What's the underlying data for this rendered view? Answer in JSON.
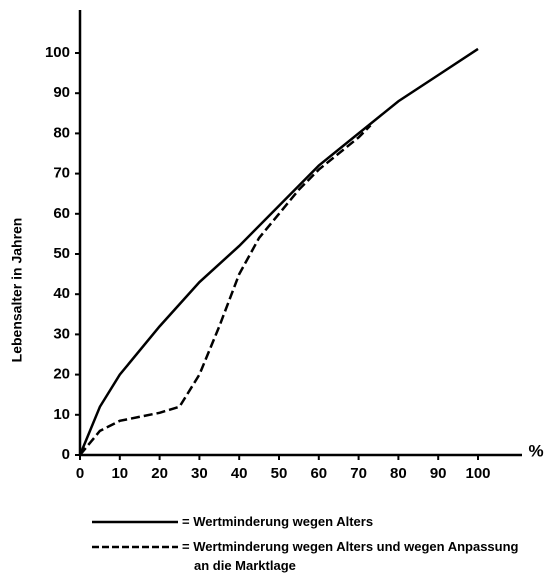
{
  "chart_data": {
    "type": "line",
    "ylabel": "Lebensalter in Jahren",
    "xlabel": "%",
    "xlim": [
      0,
      100
    ],
    "ylim": [
      0,
      100
    ],
    "xticks": [
      0,
      10,
      20,
      30,
      40,
      50,
      60,
      70,
      80,
      90,
      100
    ],
    "yticks": [
      0,
      10,
      20,
      30,
      40,
      50,
      60,
      70,
      80,
      90,
      100
    ],
    "grid": false,
    "series": [
      {
        "name": "= Wertminderung wegen Alters",
        "color": "#000000",
        "dash": false,
        "x": [
          0,
          5,
          10,
          20,
          30,
          40,
          50,
          60,
          70,
          80,
          90,
          100
        ],
        "values": [
          0,
          12,
          20,
          32,
          43,
          52,
          62,
          72,
          80,
          88,
          94.5,
          101
        ]
      },
      {
        "name": "= Wertminderung wegen Alters und wegen Anpassung an die Marktlage",
        "color": "#000000",
        "dash": true,
        "x": [
          0,
          5,
          10,
          20,
          25,
          30,
          35,
          40,
          45,
          50,
          55,
          60,
          65,
          70,
          73
        ],
        "values": [
          0,
          6,
          8.5,
          10.5,
          12,
          20,
          32,
          45,
          54,
          60,
          66,
          71,
          75,
          79,
          82
        ]
      }
    ]
  }
}
